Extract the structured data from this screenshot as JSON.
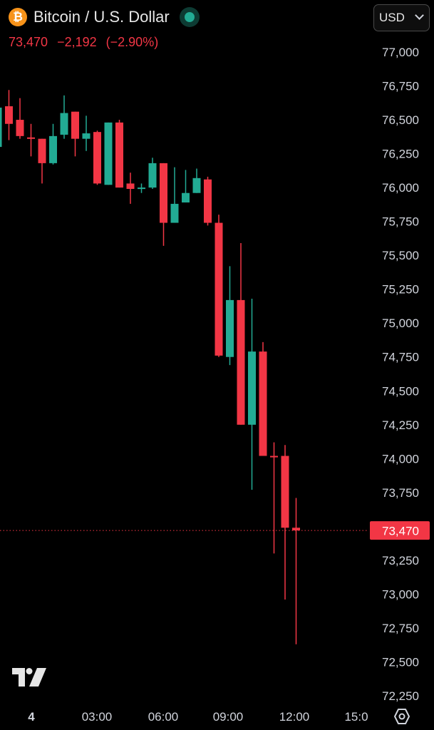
{
  "header": {
    "title": "Bitcoin / U.S. Dollar",
    "logo_icon": "bitcoin-icon",
    "logo_glyph": "₿",
    "status_icon": "market-open-dot-icon",
    "last_price": "73,470",
    "change": "−2,192",
    "change_percent": "(−2.90%)"
  },
  "currency_select": {
    "value": "USD"
  },
  "colors": {
    "background": "#000000",
    "up": "#22ab94",
    "down": "#f23645",
    "text": "#d1d4dc",
    "btc_orange": "#f7931a"
  },
  "chart_data": {
    "type": "candlestick",
    "symbol": "BTCUSD",
    "y_axis": {
      "side": "right",
      "range": [
        72100,
        77250
      ],
      "ticks": [
        "77,000",
        "76,750",
        "76,500",
        "76,250",
        "76,000",
        "75,750",
        "75,500",
        "75,250",
        "75,000",
        "74,750",
        "74,500",
        "74,250",
        "74,000",
        "73,750",
        "73,470",
        "73,250",
        "73,000",
        "72,750",
        "72,500",
        "72,250"
      ]
    },
    "x_axis": {
      "ticks": [
        "4",
        "03:00",
        "06:00",
        "09:00",
        "12:00",
        "15:0"
      ]
    },
    "current_price": 73470,
    "current_price_label": "73,470",
    "grid": false,
    "candles": [
      {
        "o": 76300,
        "h": 76630,
        "l": 76280,
        "c": 76590
      },
      {
        "o": 76600,
        "h": 76720,
        "l": 76350,
        "c": 76470
      },
      {
        "o": 76500,
        "h": 76660,
        "l": 76360,
        "c": 76380
      },
      {
        "o": 76370,
        "h": 76470,
        "l": 76230,
        "c": 76360
      },
      {
        "o": 76360,
        "h": 76360,
        "l": 76030,
        "c": 76180
      },
      {
        "o": 76180,
        "h": 76470,
        "l": 76170,
        "c": 76380
      },
      {
        "o": 76390,
        "h": 76680,
        "l": 76360,
        "c": 76550
      },
      {
        "o": 76560,
        "h": 76560,
        "l": 76230,
        "c": 76360
      },
      {
        "o": 76360,
        "h": 76530,
        "l": 76270,
        "c": 76400
      },
      {
        "o": 76410,
        "h": 76420,
        "l": 76020,
        "c": 76030
      },
      {
        "o": 76020,
        "h": 76480,
        "l": 76020,
        "c": 76480
      },
      {
        "o": 76480,
        "h": 76500,
        "l": 76000,
        "c": 76000
      },
      {
        "o": 76030,
        "h": 76110,
        "l": 75880,
        "c": 75990
      },
      {
        "o": 76000,
        "h": 76030,
        "l": 75960,
        "c": 76000
      },
      {
        "o": 76000,
        "h": 76220,
        "l": 75990,
        "c": 76180
      },
      {
        "o": 76180,
        "h": 76180,
        "l": 75570,
        "c": 75740
      },
      {
        "o": 75740,
        "h": 76150,
        "l": 75740,
        "c": 75880
      },
      {
        "o": 75890,
        "h": 76130,
        "l": 75890,
        "c": 75960
      },
      {
        "o": 75960,
        "h": 76140,
        "l": 75960,
        "c": 76070
      },
      {
        "o": 76060,
        "h": 76080,
        "l": 75720,
        "c": 75740
      },
      {
        "o": 75740,
        "h": 75800,
        "l": 74750,
        "c": 74760
      },
      {
        "o": 74750,
        "h": 75420,
        "l": 74690,
        "c": 75170
      },
      {
        "o": 75170,
        "h": 75590,
        "l": 74250,
        "c": 74250
      },
      {
        "o": 74250,
        "h": 75180,
        "l": 73770,
        "c": 74790
      },
      {
        "o": 74790,
        "h": 74860,
        "l": 74020,
        "c": 74020
      },
      {
        "o": 74020,
        "h": 74120,
        "l": 73300,
        "c": 74010
      },
      {
        "o": 74020,
        "h": 74100,
        "l": 72960,
        "c": 73490
      },
      {
        "o": 73490,
        "h": 73710,
        "l": 72630,
        "c": 73470
      }
    ]
  }
}
